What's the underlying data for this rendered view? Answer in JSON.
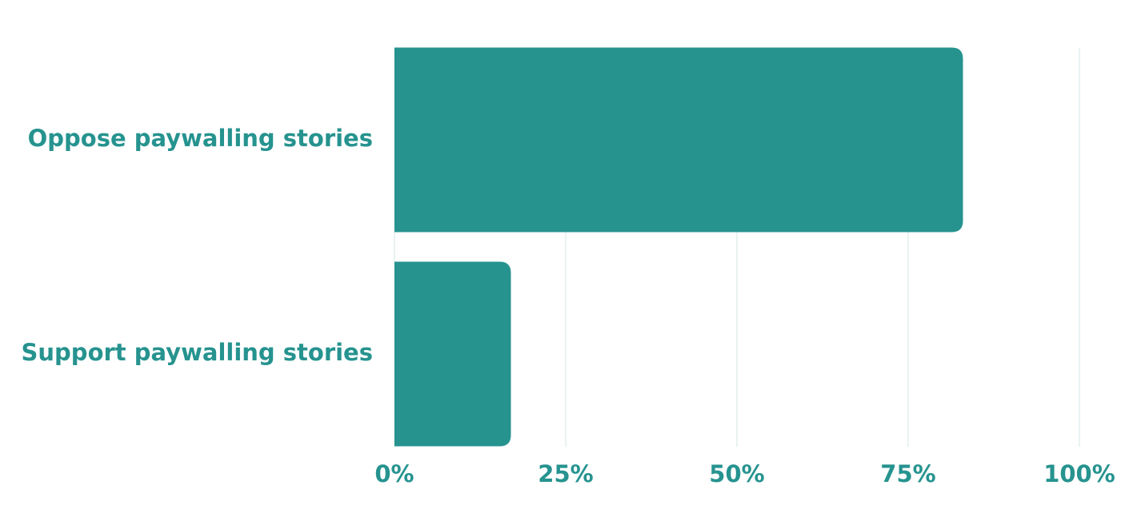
{
  "chart_data": {
    "type": "hbar",
    "categories": [
      "Oppose paywalling stories",
      "Support paywalling stories"
    ],
    "values": [
      83,
      17
    ],
    "color": "#26938f",
    "xlim": [
      0,
      100
    ],
    "xticks": [
      {
        "value": 0,
        "label": "0%"
      },
      {
        "value": 25,
        "label": "25%"
      },
      {
        "value": 50,
        "label": "50%"
      },
      {
        "value": 75,
        "label": "75%"
      },
      {
        "value": 100,
        "label": "100%"
      }
    ],
    "grid": true
  }
}
